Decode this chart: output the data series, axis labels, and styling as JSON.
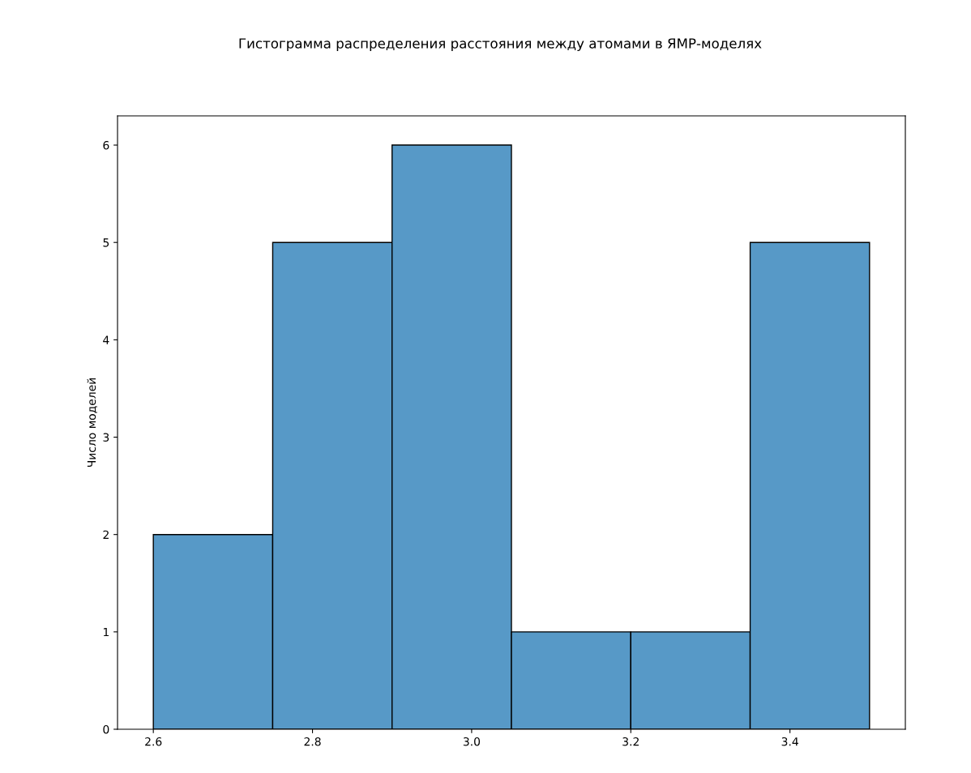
{
  "chart_data": {
    "type": "histogram",
    "title": "Гистограмма распределения расстояния между атомами в ЯМР-моделях",
    "ylabel": "Число моделей",
    "bins": [
      2.6,
      2.75,
      2.9,
      3.05,
      3.2,
      3.35,
      3.5
    ],
    "values": [
      2,
      5,
      6,
      1,
      1,
      5
    ],
    "color": "#5799c7",
    "xlim": [
      2.555,
      3.545
    ],
    "xticks": [
      2.6,
      2.8,
      {
        "value": 3.0,
        "label": "3.0"
      },
      3.2,
      3.4
    ],
    "ylim": [
      0,
      6.3
    ],
    "yticks": [
      0,
      1,
      2,
      3,
      4,
      5,
      6
    ],
    "grid": false
  }
}
